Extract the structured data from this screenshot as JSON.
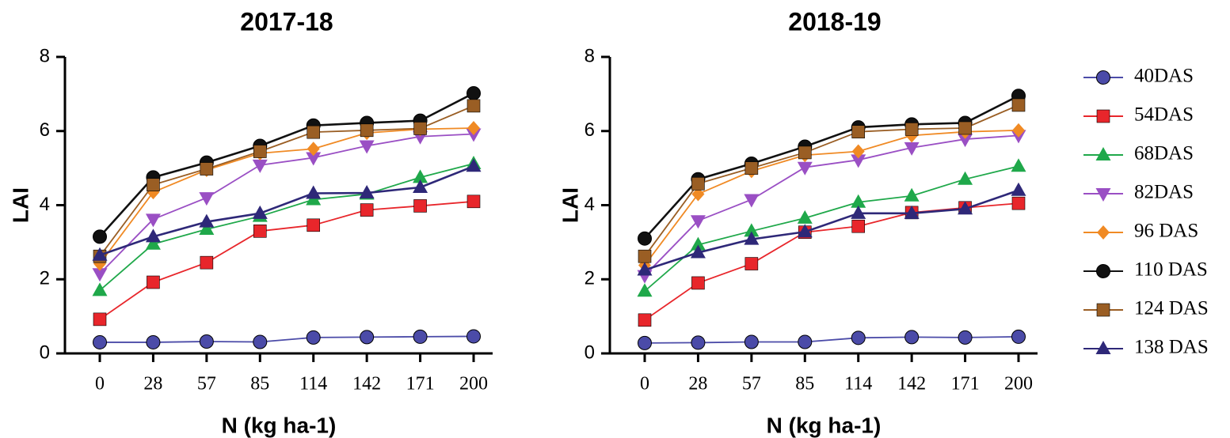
{
  "chart_data": [
    {
      "type": "line",
      "title": "2017-18",
      "xlabel": "N (kg ha-1)",
      "ylabel": "LAI",
      "categories": [
        "0",
        "28",
        "57",
        "85",
        "114",
        "142",
        "171",
        "200"
      ],
      "ylim": [
        0,
        8
      ],
      "yticks": [
        "0",
        "2",
        "4",
        "6",
        "8"
      ],
      "series": [
        {
          "name": "40DAS",
          "values": [
            0.3,
            0.3,
            0.32,
            0.31,
            0.43,
            0.44,
            0.45,
            0.46
          ]
        },
        {
          "name": "54DAS",
          "values": [
            0.92,
            1.92,
            2.45,
            3.3,
            3.46,
            3.87,
            3.98,
            4.1
          ]
        },
        {
          "name": "68DAS",
          "values": [
            1.7,
            2.95,
            3.35,
            3.7,
            4.15,
            4.3,
            4.75,
            5.12
          ]
        },
        {
          "name": "82DAS",
          "values": [
            2.15,
            3.62,
            4.2,
            5.08,
            5.28,
            5.6,
            5.85,
            5.92
          ]
        },
        {
          "name": "96 DAS",
          "values": [
            2.42,
            4.35,
            4.95,
            5.4,
            5.52,
            5.95,
            6.05,
            6.08
          ]
        },
        {
          "name": "110 DAS",
          "values": [
            3.15,
            4.75,
            5.15,
            5.6,
            6.15,
            6.22,
            6.28,
            7.02
          ]
        },
        {
          "name": "124 DAS",
          "values": [
            2.62,
            4.55,
            4.98,
            5.45,
            5.97,
            6.02,
            6.07,
            6.68
          ]
        },
        {
          "name": "138 DAS",
          "values": [
            2.65,
            3.15,
            3.55,
            3.78,
            4.32,
            4.33,
            4.48,
            5.05
          ]
        }
      ]
    },
    {
      "type": "line",
      "title": "2018-19",
      "xlabel": "N (kg ha-1)",
      "ylabel": "LAI",
      "categories": [
        "0",
        "28",
        "57",
        "85",
        "114",
        "142",
        "171",
        "200"
      ],
      "ylim": [
        0,
        8
      ],
      "yticks": [
        "0",
        "2",
        "4",
        "6",
        "8"
      ],
      "series": [
        {
          "name": "40DAS",
          "values": [
            0.28,
            0.29,
            0.31,
            0.31,
            0.42,
            0.44,
            0.43,
            0.45
          ]
        },
        {
          "name": "54DAS",
          "values": [
            0.9,
            1.9,
            2.42,
            3.27,
            3.43,
            3.8,
            3.93,
            4.05
          ]
        },
        {
          "name": "68DAS",
          "values": [
            1.68,
            2.93,
            3.3,
            3.65,
            4.08,
            4.25,
            4.7,
            5.05
          ]
        },
        {
          "name": "82DAS",
          "values": [
            2.1,
            3.58,
            4.15,
            5.02,
            5.22,
            5.55,
            5.78,
            5.88
          ]
        },
        {
          "name": "96 DAS",
          "values": [
            2.38,
            4.3,
            4.92,
            5.35,
            5.45,
            5.88,
            5.98,
            6.02
          ]
        },
        {
          "name": "110 DAS",
          "values": [
            3.1,
            4.7,
            5.12,
            5.58,
            6.1,
            6.18,
            6.22,
            6.95
          ]
        },
        {
          "name": "124 DAS",
          "values": [
            2.62,
            4.58,
            5.0,
            5.42,
            5.98,
            6.05,
            6.08,
            6.7
          ]
        },
        {
          "name": "138 DAS",
          "values": [
            2.25,
            2.72,
            3.08,
            3.28,
            3.78,
            3.78,
            3.9,
            4.4
          ]
        }
      ]
    }
  ],
  "legend": {
    "placement": "right",
    "entries": [
      {
        "label": "40DAS",
        "color": "#4B4BA8",
        "marker": "circle"
      },
      {
        "label": "54DAS",
        "color": "#E8262B",
        "marker": "square"
      },
      {
        "label": "68DAS",
        "color": "#1FA84A",
        "marker": "triangle-up"
      },
      {
        "label": "82DAS",
        "color": "#9A4FC4",
        "marker": "triangle-down"
      },
      {
        "label": "96 DAS",
        "color": "#F08A24",
        "marker": "diamond"
      },
      {
        "label": "110 DAS",
        "color": "#111111",
        "marker": "circle"
      },
      {
        "label": "124 DAS",
        "color": "#9A5E24",
        "marker": "square"
      },
      {
        "label": "138 DAS",
        "color": "#2E2878",
        "marker": "triangle-up"
      }
    ]
  }
}
